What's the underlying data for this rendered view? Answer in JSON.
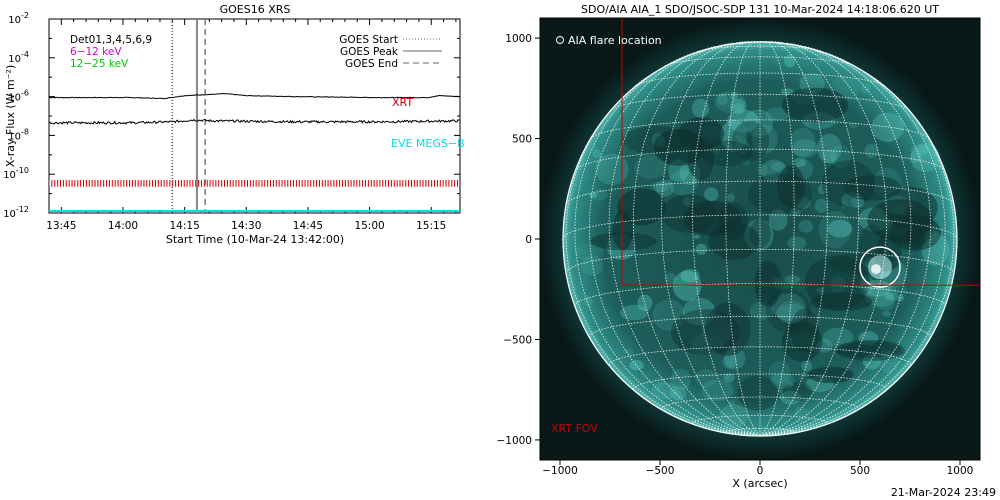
{
  "footer_timestamp": "21-Mar-2024 23:49",
  "chart_data": [
    {
      "type": "line",
      "title": "GOES16 XRS",
      "xlabel": "Start Time (10-Mar-24 13:42:00)",
      "ylabel": "X-ray Flux (W m⁻²)",
      "y_scale": "log",
      "ylim_exponent": [
        -12,
        -2
      ],
      "y_ticks": [
        {
          "base": "10",
          "exp": "-2",
          "value": -2
        },
        {
          "base": "10",
          "exp": "-4",
          "value": -4
        },
        {
          "base": "10",
          "exp": "-6",
          "value": -6
        },
        {
          "base": "10",
          "exp": "-8",
          "value": -8
        },
        {
          "base": "10",
          "exp": "-10",
          "value": -10
        },
        {
          "base": "10",
          "exp": "-12",
          "value": -12
        }
      ],
      "x_range_minutes_after_start": [
        0,
        100
      ],
      "x_ticks": [
        {
          "label": "13:45",
          "min": 3
        },
        {
          "label": "14:00",
          "min": 18
        },
        {
          "label": "14:15",
          "min": 33
        },
        {
          "label": "14:30",
          "min": 48
        },
        {
          "label": "14:45",
          "min": 63
        },
        {
          "label": "15:00",
          "min": 78
        },
        {
          "label": "15:15",
          "min": 93
        }
      ],
      "series": [
        {
          "name": "XRS long",
          "color": "#000000",
          "points": [
            [
              0,
              -6.05
            ],
            [
              20,
              -6.05
            ],
            [
              28,
              -6.1
            ],
            [
              33,
              -5.95
            ],
            [
              38,
              -5.9
            ],
            [
              43,
              -5.85
            ],
            [
              48,
              -5.95
            ],
            [
              60,
              -6.0
            ],
            [
              80,
              -6.05
            ],
            [
              92,
              -6.05
            ],
            [
              95,
              -5.95
            ],
            [
              100,
              -6.0
            ]
          ]
        },
        {
          "name": "XRS short",
          "color": "#000000",
          "points": [
            [
              0,
              -7.35
            ],
            [
              20,
              -7.35
            ],
            [
              30,
              -7.3
            ],
            [
              35,
              -7.2
            ],
            [
              40,
              -7.25
            ],
            [
              60,
              -7.3
            ],
            [
              80,
              -7.3
            ],
            [
              100,
              -7.25
            ]
          ]
        }
      ],
      "event_lines": [
        {
          "name": "GOES Start",
          "min": 30,
          "style": "dotted"
        },
        {
          "name": "GOES Peak",
          "min": 36,
          "style": "solid"
        },
        {
          "name": "GOES End",
          "min": 38,
          "style": "dashed"
        }
      ],
      "legend_left": [
        {
          "text": "Det01,3,4,5,6,9",
          "color": "#000000"
        },
        {
          "text": "6−12 keV",
          "color": "#d400d4"
        },
        {
          "text": "12−25 keV",
          "color": "#00c800"
        }
      ],
      "legend_right": [
        {
          "text": "GOES Start",
          "style": "dotted"
        },
        {
          "text": "GOES Peak",
          "style": "solid"
        },
        {
          "text": "GOES End",
          "style": "dashed"
        }
      ],
      "annotations": [
        {
          "text": "XRT",
          "color": "#cc0000"
        },
        {
          "text": "EVE MEGS−B",
          "color": "#00e0e0"
        }
      ],
      "xrt_band_color": "#cc0000",
      "eve_color": "#00e0e0"
    },
    {
      "type": "image",
      "title": "SDO/AIA AIA_1 SDO/JSOC-SDP 131 10-Mar-2024 14:18:06.620 UT",
      "xlabel": "X (arcsec)",
      "x_range_arcsec": [
        -1100,
        1100
      ],
      "y_range_arcsec": [
        -1100,
        1100
      ],
      "x_ticks": [
        {
          "label": "−1000",
          "v": -1000
        },
        {
          "label": "−500",
          "v": -500
        },
        {
          "label": "0",
          "v": 0
        },
        {
          "label": "500",
          "v": 500
        },
        {
          "label": "1000",
          "v": 1000
        }
      ],
      "y_ticks": [
        {
          "label": "1000",
          "v": 1000
        },
        {
          "label": "500",
          "v": 500
        },
        {
          "label": "0",
          "v": 0
        },
        {
          "label": "−500",
          "v": -500
        },
        {
          "label": "−1000",
          "v": -1000
        }
      ],
      "solar_radius_arcsec": 985,
      "flare_location": {
        "label": "AIA flare location",
        "x": 600,
        "y": -140,
        "radius": 100
      },
      "xrt_fov": {
        "label": "XRT FOV",
        "x_range": [
          -690,
          1100
        ],
        "y_range": [
          -230,
          1100
        ],
        "color": "#cc0000"
      },
      "disk_color": "#1e6e6a"
    }
  ]
}
